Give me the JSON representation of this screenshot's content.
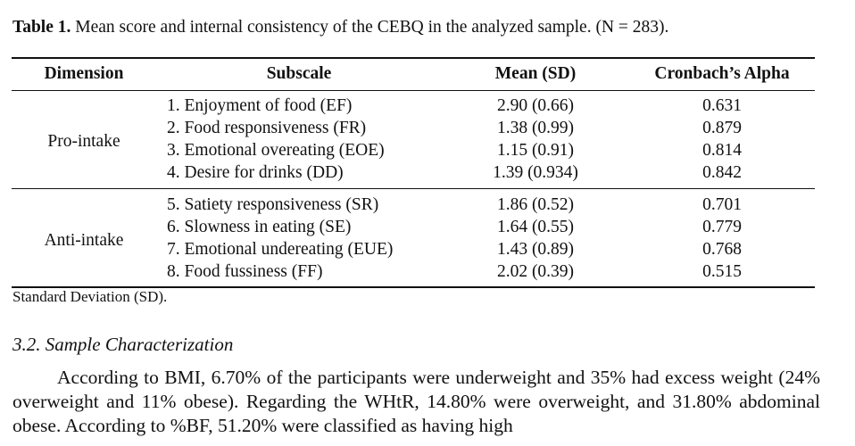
{
  "table": {
    "label": "Table 1.",
    "caption": "Mean score and internal consistency of the CEBQ in the analyzed sample. (N = 283).",
    "headers": [
      "Dimension",
      "Subscale",
      "Mean (SD)",
      "Cronbach’s Alpha"
    ],
    "groups": [
      {
        "dimension": "Pro-intake",
        "rows": [
          {
            "subscale": "1. Enjoyment of food (EF)",
            "mean": "2.90 (0.66)",
            "alpha": "0.631"
          },
          {
            "subscale": "2. Food responsiveness (FR)",
            "mean": "1.38 (0.99)",
            "alpha": "0.879"
          },
          {
            "subscale": "3. Emotional overeating (EOE)",
            "mean": "1.15 (0.91)",
            "alpha": "0.814"
          },
          {
            "subscale": "4. Desire for drinks (DD)",
            "mean": "1.39 (0.934)",
            "alpha": "0.842"
          }
        ]
      },
      {
        "dimension": "Anti-intake",
        "rows": [
          {
            "subscale": "5. Satiety responsiveness (SR)",
            "mean": "1.86 (0.52)",
            "alpha": "0.701"
          },
          {
            "subscale": "6. Slowness in eating (SE)",
            "mean": "1.64 (0.55)",
            "alpha": "0.779"
          },
          {
            "subscale": "7. Emotional undereating (EUE)",
            "mean": "1.43 (0.89)",
            "alpha": "0.768"
          },
          {
            "subscale": "8. Food fussiness (FF)",
            "mean": "2.02 (0.39)",
            "alpha": "0.515"
          }
        ]
      }
    ],
    "note": "Standard Deviation (SD)."
  },
  "section": {
    "heading": "3.2. Sample Characterization",
    "paragraph": "According to BMI, 6.70% of the participants were underweight and 35% had excess weight (24% overweight and 11% obese). Regarding the WHtR, 14.80% were overweight, and 31.80% abdominal obese. According to %BF, 51.20% were classified as having high"
  }
}
